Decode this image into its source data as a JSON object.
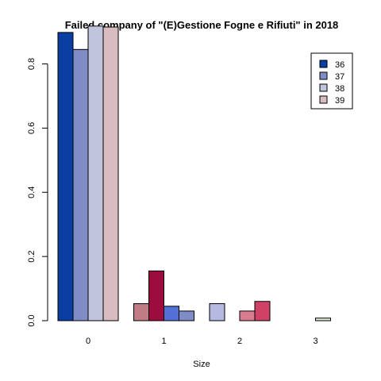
{
  "chart_data": {
    "type": "bar",
    "title": "Failed company of  \"(E)Gestione Fogne e Rifiuti\" in 2018",
    "xlabel": "Size",
    "ylabel": "",
    "ylim": [
      0,
      0.92
    ],
    "yticks": [
      "0.0",
      "0.2",
      "0.4",
      "0.6",
      "0.8"
    ],
    "categories": [
      "0",
      "1",
      "2",
      "3"
    ],
    "legend_position": "top-right",
    "grid": false,
    "series": [
      {
        "name": "36",
        "legend_color": "#0a3ea3"
      },
      {
        "name": "37",
        "legend_color": "#7f8cc6"
      },
      {
        "name": "38",
        "legend_color": "#c0c4dc"
      },
      {
        "name": "39",
        "legend_color": "#d9bcc0"
      }
    ],
    "groups": [
      {
        "category": "0",
        "values": [
          0.898,
          0.845,
          0.918,
          0.915
        ],
        "colors": [
          "#0a3ea3",
          "#7f8cc6",
          "#c0c4dc",
          "#d9bcc0"
        ]
      },
      {
        "category": "1",
        "values": [
          0.053,
          0.155,
          0.045,
          0.03
        ],
        "colors": [
          "#c07b84",
          "#9b0d3f",
          "#5470d6",
          "#7f8cc6"
        ]
      },
      {
        "category": "2",
        "values": [
          0.053,
          0.0,
          0.03,
          0.06
        ],
        "colors": [
          "#b6bae0",
          "#e6a8b8",
          "#da7b8e",
          "#cf4266"
        ]
      },
      {
        "category": "3",
        "values": [
          0.0,
          0.0,
          0.008,
          0.0
        ],
        "colors": [
          "#d9d9d9",
          "#d9d9d9",
          "#e4ecd4",
          "#d9d9d9"
        ]
      }
    ]
  }
}
